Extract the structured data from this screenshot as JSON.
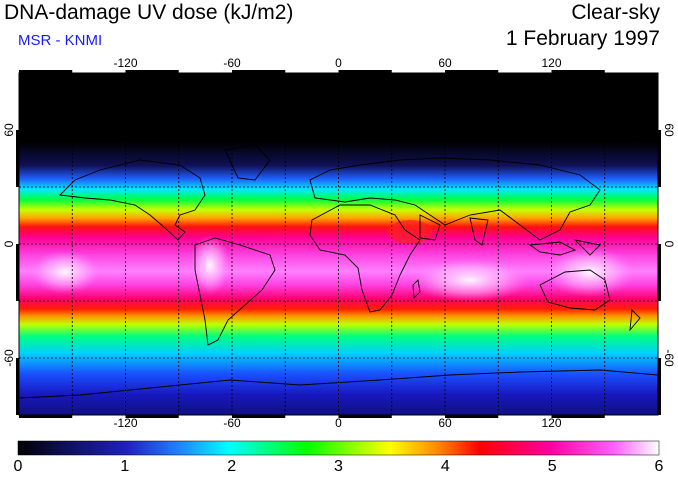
{
  "header": {
    "title": "DNA-damage UV dose (kJ/m2)",
    "source": "MSR - KNMI",
    "condition": "Clear-sky",
    "date": "1 February 1997"
  },
  "map": {
    "lon_ticks": [
      -120,
      -60,
      0,
      60,
      120
    ],
    "lat_ticks": [
      60,
      0,
      -60
    ],
    "lon_range": [
      -180,
      180
    ],
    "lat_range": [
      -90,
      90
    ],
    "gridline_style": "dashed"
  },
  "colorbar": {
    "min": 0,
    "max": 6,
    "labels": [
      "0",
      "1",
      "2",
      "3",
      "4",
      "5",
      "6"
    ],
    "colors": [
      "#000000",
      "#1d1db0",
      "#2070ff",
      "#00ffff",
      "#00ff00",
      "#ffff00",
      "#ff8000",
      "#ff0000",
      "#ff00a0",
      "#ff60ff",
      "#ffffff"
    ]
  }
}
